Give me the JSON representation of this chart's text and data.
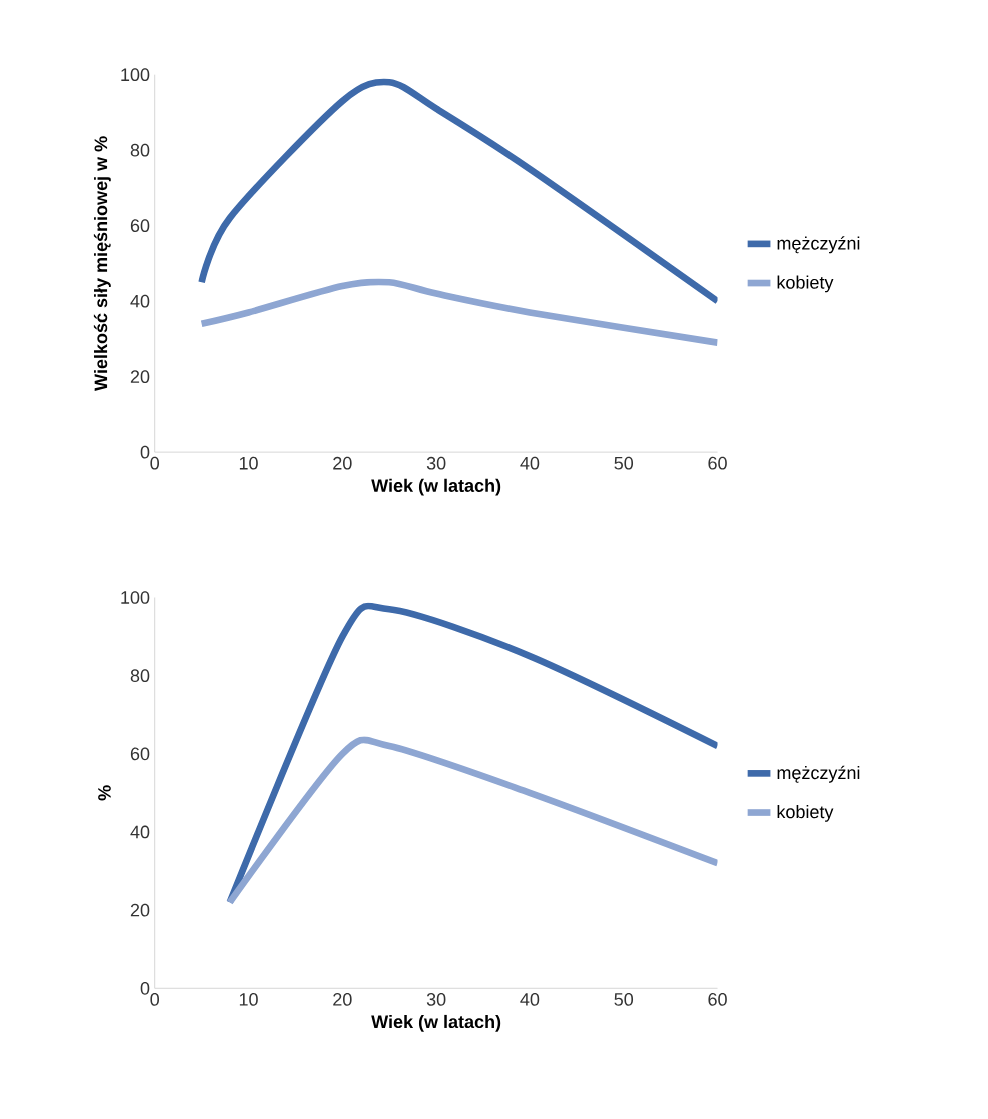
{
  "chart_data": [
    {
      "type": "line",
      "xlabel": "Wiek (w latach)",
      "ylabel": "Wielkość siły mięśniowej w %",
      "xlim": [
        0,
        60
      ],
      "xticks": [
        0,
        10,
        20,
        30,
        40,
        50,
        60
      ],
      "ylim": [
        0,
        100
      ],
      "yticks": [
        0,
        20,
        40,
        60,
        80,
        100
      ],
      "legend": "right",
      "marker": "none",
      "series": [
        {
          "name": "mężczyźni",
          "color": "#3e6aaa",
          "x": [
            5,
            8,
            20,
            25,
            30,
            40,
            60
          ],
          "values": [
            45,
            62,
            93,
            98,
            91,
            75,
            40
          ]
        },
        {
          "name": "kobiety",
          "color": "#8ea6d2",
          "x": [
            5,
            10,
            20,
            25,
            30,
            40,
            60
          ],
          "values": [
            34,
            37,
            44,
            45,
            42,
            37,
            29
          ]
        }
      ]
    },
    {
      "type": "line",
      "xlabel": "Wiek (w latach)",
      "ylabel": "%",
      "xlim": [
        0,
        60
      ],
      "xticks": [
        0,
        10,
        20,
        30,
        40,
        50,
        60
      ],
      "ylim": [
        0,
        100
      ],
      "yticks": [
        0,
        20,
        40,
        60,
        80,
        100
      ],
      "legend": "right",
      "marker": "none",
      "series": [
        {
          "name": "mężczyźni",
          "color": "#3e6aaa",
          "x": [
            8,
            20,
            25,
            40,
            60
          ],
          "values": [
            22,
            90,
            97,
            85,
            62
          ]
        },
        {
          "name": "kobiety",
          "color": "#8ea6d2",
          "x": [
            8,
            20,
            25,
            40,
            60
          ],
          "values": [
            22,
            60,
            62,
            50,
            32
          ]
        }
      ]
    }
  ]
}
